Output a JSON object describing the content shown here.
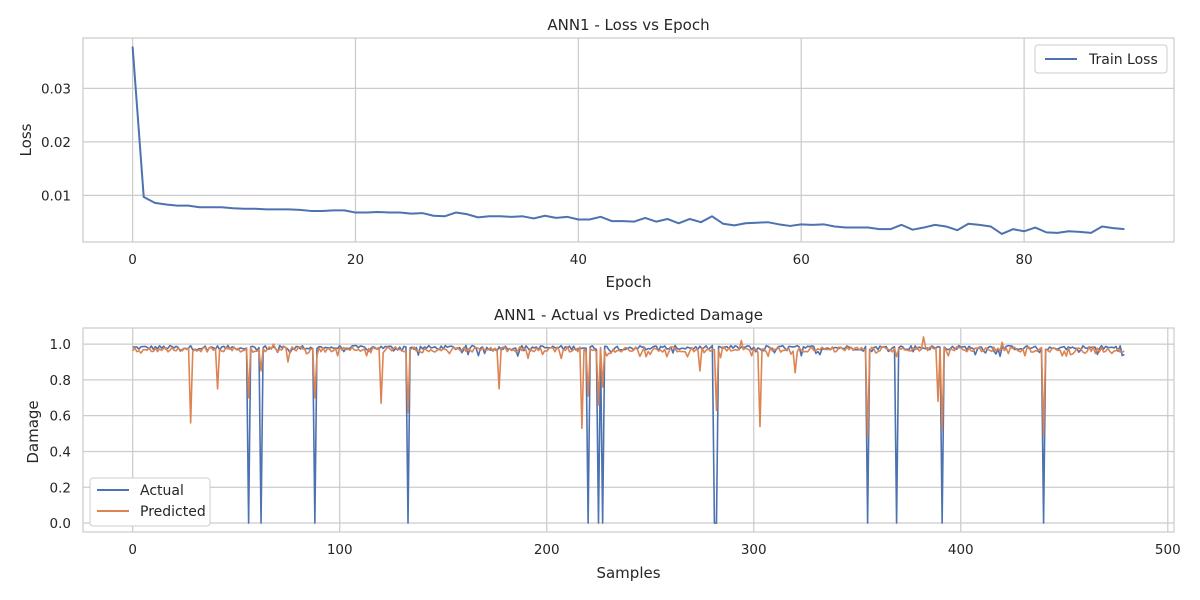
{
  "chart_data": [
    {
      "type": "line",
      "title": "ANN1 - Loss vs Epoch",
      "xlabel": "Epoch",
      "ylabel": "Loss",
      "xlim": [
        -4.45,
        93.45
      ],
      "ylim": [
        0.0013,
        0.0394
      ],
      "xticks": [
        0,
        20,
        40,
        60,
        80
      ],
      "yticks": [
        0.01,
        0.02,
        0.03
      ],
      "ytick_labels": [
        "0.01",
        "0.02",
        "0.03"
      ],
      "grid": true,
      "legend_position": "top-right",
      "series": [
        {
          "name": "Train Loss",
          "color": "#4c72b0",
          "x": [
            0,
            1,
            2,
            3,
            4,
            5,
            6,
            7,
            8,
            9,
            10,
            11,
            12,
            13,
            14,
            15,
            16,
            17,
            18,
            19,
            20,
            21,
            22,
            23,
            24,
            25,
            26,
            27,
            28,
            29,
            30,
            31,
            32,
            33,
            34,
            35,
            36,
            37,
            38,
            39,
            40,
            41,
            42,
            43,
            44,
            45,
            46,
            47,
            48,
            49,
            50,
            51,
            52,
            53,
            54,
            55,
            56,
            57,
            58,
            59,
            60,
            61,
            62,
            63,
            64,
            65,
            66,
            67,
            68,
            69,
            70,
            71,
            72,
            73,
            74,
            75,
            76,
            77,
            78,
            79,
            80,
            81,
            82,
            83,
            84,
            85,
            86,
            87,
            88,
            89
          ],
          "values": [
            0.0378,
            0.0097,
            0.0086,
            0.0083,
            0.0081,
            0.0081,
            0.0078,
            0.0078,
            0.0078,
            0.0076,
            0.0075,
            0.0075,
            0.0074,
            0.0074,
            0.0074,
            0.0073,
            0.0071,
            0.0071,
            0.0072,
            0.0072,
            0.0068,
            0.0068,
            0.0069,
            0.0068,
            0.0068,
            0.0066,
            0.0067,
            0.0062,
            0.0061,
            0.0068,
            0.0065,
            0.0059,
            0.0061,
            0.0061,
            0.006,
            0.0061,
            0.0057,
            0.0062,
            0.0058,
            0.006,
            0.0055,
            0.0055,
            0.006,
            0.0052,
            0.0052,
            0.0051,
            0.0058,
            0.0051,
            0.0056,
            0.0048,
            0.0056,
            0.005,
            0.0061,
            0.0047,
            0.0044,
            0.0048,
            0.0049,
            0.005,
            0.0046,
            0.0043,
            0.0046,
            0.0045,
            0.0046,
            0.0042,
            0.004,
            0.004,
            0.004,
            0.0037,
            0.0037,
            0.0045,
            0.0036,
            0.004,
            0.0045,
            0.0042,
            0.0035,
            0.0047,
            0.0045,
            0.0042,
            0.0028,
            0.0037,
            0.0033,
            0.004,
            0.0031,
            0.003,
            0.0033,
            0.0032,
            0.003,
            0.0042,
            0.0039,
            0.0037
          ]
        }
      ]
    },
    {
      "type": "line",
      "title": "ANN1 - Actual vs Predicted Damage",
      "xlabel": "Samples",
      "ylabel": "Damage",
      "xlim": [
        -24,
        503
      ],
      "ylim": [
        -0.05,
        1.09
      ],
      "xticks": [
        0,
        100,
        200,
        300,
        400,
        500
      ],
      "yticks": [
        0.0,
        0.2,
        0.4,
        0.6,
        0.8,
        1.0
      ],
      "ytick_labels": [
        "0.0",
        "0.2",
        "0.4",
        "0.6",
        "0.8",
        "1.0"
      ],
      "grid": true,
      "legend_position": "bottom-left",
      "n_samples": 480,
      "series": [
        {
          "name": "Actual",
          "color": "#4c72b0",
          "baseline": 0.98,
          "dips": [
            {
              "x": 56,
              "value": 0.0
            },
            {
              "x": 62,
              "value": 0.0
            },
            {
              "x": 88,
              "value": 0.0
            },
            {
              "x": 133,
              "value": 0.0
            },
            {
              "x": 220,
              "value": 0.0
            },
            {
              "x": 225,
              "value": 0.0
            },
            {
              "x": 227,
              "value": 0.0
            },
            {
              "x": 281,
              "value": 0.0
            },
            {
              "x": 282,
              "value": 0.0
            },
            {
              "x": 355,
              "value": 0.0
            },
            {
              "x": 369,
              "value": 0.0
            },
            {
              "x": 391,
              "value": 0.0
            },
            {
              "x": 440,
              "value": 0.0
            }
          ]
        },
        {
          "name": "Predicted",
          "color": "#dd8452",
          "baseline": 0.97,
          "dips": [
            {
              "x": 28,
              "value": 0.56
            },
            {
              "x": 41,
              "value": 0.75
            },
            {
              "x": 56,
              "value": 0.7
            },
            {
              "x": 62,
              "value": 0.85
            },
            {
              "x": 75,
              "value": 0.9
            },
            {
              "x": 88,
              "value": 0.7
            },
            {
              "x": 120,
              "value": 0.67
            },
            {
              "x": 133,
              "value": 0.62
            },
            {
              "x": 177,
              "value": 0.75
            },
            {
              "x": 207,
              "value": 0.92
            },
            {
              "x": 217,
              "value": 0.53
            },
            {
              "x": 220,
              "value": 0.71
            },
            {
              "x": 225,
              "value": 0.66
            },
            {
              "x": 227,
              "value": 0.76
            },
            {
              "x": 258,
              "value": 0.93
            },
            {
              "x": 274,
              "value": 0.85
            },
            {
              "x": 282,
              "value": 0.63
            },
            {
              "x": 303,
              "value": 0.54
            },
            {
              "x": 320,
              "value": 0.84
            },
            {
              "x": 355,
              "value": 0.48
            },
            {
              "x": 369,
              "value": 0.93
            },
            {
              "x": 389,
              "value": 0.68
            },
            {
              "x": 391,
              "value": 0.52
            },
            {
              "x": 440,
              "value": 0.49
            }
          ],
          "peaks": [
            {
              "x": 68,
              "value": 1.0
            },
            {
              "x": 294,
              "value": 1.02
            },
            {
              "x": 382,
              "value": 1.04
            },
            {
              "x": 420,
              "value": 1.01
            }
          ]
        }
      ]
    }
  ]
}
